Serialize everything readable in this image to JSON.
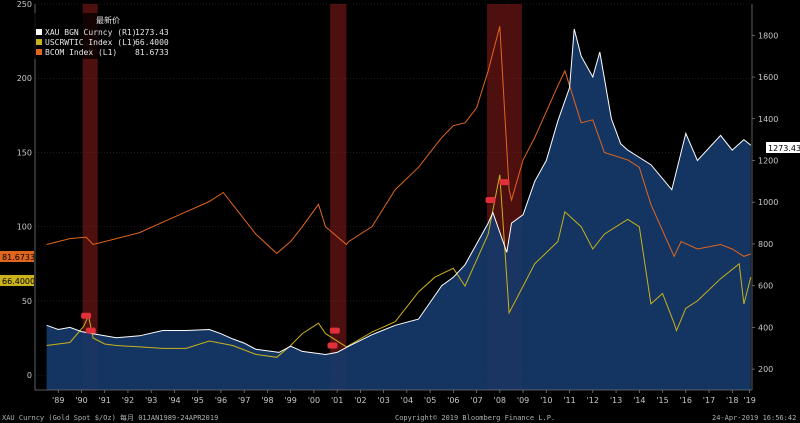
{
  "colors": {
    "background": "#000000",
    "gold": "#ffffff",
    "oil": "#c9b21b",
    "bcom": "#e0661e",
    "area": "#163a6b",
    "recession": "#8e1b1b",
    "marker": "#e0303a",
    "grid": "#3a3a3a"
  },
  "chart_data": {
    "type": "line",
    "title": "最新价",
    "xlabel": "",
    "ylabel_left": "",
    "ylabel_right": "",
    "x_range": [
      1988.5,
      2019.35
    ],
    "ylim_left": [
      -10,
      250
    ],
    "ylim_right": [
      100,
      1950
    ],
    "left_ticks": [
      0,
      50,
      100,
      150,
      200,
      250
    ],
    "right_ticks": [
      200,
      400,
      600,
      800,
      1000,
      1200,
      1400,
      1600,
      1800
    ],
    "x_ticks": [
      {
        "label": "'89",
        "x": 1989.5
      },
      {
        "label": "'90",
        "x": 1990.5
      },
      {
        "label": "'91",
        "x": 1991.5
      },
      {
        "label": "'92",
        "x": 1992.5
      },
      {
        "label": "'93",
        "x": 1993.5
      },
      {
        "label": "'94",
        "x": 1994.5
      },
      {
        "label": "'95",
        "x": 1995.5
      },
      {
        "label": "'96",
        "x": 1996.5
      },
      {
        "label": "'97",
        "x": 1997.5
      },
      {
        "label": "'98",
        "x": 1998.5
      },
      {
        "label": "'99",
        "x": 1999.5
      },
      {
        "label": "'00",
        "x": 2000.5
      },
      {
        "label": "'01",
        "x": 2001.5
      },
      {
        "label": "'02",
        "x": 2002.5
      },
      {
        "label": "'03",
        "x": 2003.5
      },
      {
        "label": "'04",
        "x": 2004.5
      },
      {
        "label": "'05",
        "x": 2005.5
      },
      {
        "label": "'06",
        "x": 2006.5
      },
      {
        "label": "'07",
        "x": 2007.5
      },
      {
        "label": "'08",
        "x": 2008.5
      },
      {
        "label": "'09",
        "x": 2009.5
      },
      {
        "label": "'10",
        "x": 2010.5
      },
      {
        "label": "'11",
        "x": 2011.5
      },
      {
        "label": "'12",
        "x": 2012.5
      },
      {
        "label": "'13",
        "x": 2013.5
      },
      {
        "label": "'14",
        "x": 2014.5
      },
      {
        "label": "'15",
        "x": 2015.5
      },
      {
        "label": "'16",
        "x": 2016.5
      },
      {
        "label": "'17",
        "x": 2017.5
      },
      {
        "label": "'18",
        "x": 2018.5
      },
      {
        "label": "'19",
        "x": 2019.25
      }
    ],
    "recessions": [
      [
        1990.55,
        1991.2
      ],
      [
        2001.2,
        2001.9
      ],
      [
        2007.95,
        2009.45
      ]
    ],
    "legend": {
      "title": "最新价",
      "entries": [
        {
          "name": "XAU BGN Curncy  (R1)",
          "value": "1273.43",
          "color": "#ffffff"
        },
        {
          "name": "USCRWTIC Index  (L1)",
          "value": "66.4000",
          "color": "#c9b21b"
        },
        {
          "name": "BCOM Index  (L1)",
          "value": "81.6733",
          "color": "#e0661e"
        }
      ]
    },
    "last_labels": {
      "gold": "1273.43",
      "bcom": "81.6733",
      "oil": "66.4000"
    },
    "series": [
      {
        "name": "XAU BGN Curncy",
        "axis": "right",
        "x": [
          1989.0,
          1989.5,
          1990.0,
          1990.5,
          1991.0,
          1991.5,
          1992.0,
          1993.0,
          1994.0,
          1995.0,
          1996.0,
          1996.5,
          1997.0,
          1997.5,
          1998.0,
          1999.0,
          1999.5,
          2000.0,
          2001.0,
          2001.5,
          2002.0,
          2003.0,
          2004.0,
          2005.0,
          2006.0,
          2006.5,
          2007.0,
          2008.0,
          2008.2,
          2008.8,
          2009.0,
          2009.5,
          2010.0,
          2010.5,
          2011.0,
          2011.5,
          2011.7,
          2012.0,
          2012.5,
          2012.8,
          2013.3,
          2013.7,
          2014.0,
          2015.0,
          2015.9,
          2016.5,
          2017.0,
          2018.0,
          2018.5,
          2019.0,
          2019.3
        ],
        "values": [
          410,
          390,
          400,
          380,
          370,
          360,
          350,
          360,
          385,
          385,
          390,
          370,
          345,
          325,
          295,
          280,
          310,
          285,
          270,
          280,
          310,
          365,
          410,
          440,
          600,
          640,
          700,
          900,
          950,
          760,
          900,
          940,
          1100,
          1200,
          1390,
          1550,
          1830,
          1700,
          1600,
          1720,
          1400,
          1280,
          1250,
          1180,
          1060,
          1330,
          1200,
          1320,
          1250,
          1300,
          1273
        ]
      },
      {
        "name": "USCRWTIC Index",
        "axis": "left",
        "x": [
          1989.0,
          1990.0,
          1990.6,
          1990.8,
          1991.0,
          1991.5,
          1992.0,
          1993.0,
          1994.0,
          1995.0,
          1996.0,
          1997.0,
          1998.0,
          1998.9,
          1999.5,
          2000.0,
          2000.7,
          2001.0,
          2001.9,
          2002.0,
          2003.0,
          2004.0,
          2005.0,
          2005.7,
          2006.5,
          2007.0,
          2008.0,
          2008.5,
          2008.9,
          2009.0,
          2009.5,
          2010.0,
          2011.0,
          2011.3,
          2012.0,
          2012.5,
          2013.0,
          2014.0,
          2014.5,
          2015.0,
          2015.5,
          2016.0,
          2016.1,
          2016.5,
          2017.0,
          2018.0,
          2018.8,
          2019.0,
          2019.3
        ],
        "values": [
          20,
          22,
          33,
          40,
          25,
          21,
          20,
          19,
          18,
          18,
          23,
          20,
          14,
          12,
          20,
          28,
          35,
          28,
          19,
          20,
          29,
          36,
          56,
          66,
          72,
          60,
          95,
          135,
          42,
          45,
          60,
          75,
          90,
          110,
          100,
          85,
          95,
          105,
          100,
          48,
          55,
          35,
          30,
          45,
          50,
          65,
          75,
          48,
          66
        ]
      },
      {
        "name": "BCOM Index",
        "axis": "left",
        "x": [
          1989.0,
          1990.0,
          1990.7,
          1991.0,
          1992.0,
          1993.0,
          1994.0,
          1995.0,
          1996.0,
          1996.6,
          1997.0,
          1998.0,
          1998.9,
          1999.5,
          2000.0,
          2000.7,
          2001.0,
          2001.9,
          2002.0,
          2003.0,
          2004.0,
          2005.0,
          2006.0,
          2006.5,
          2007.0,
          2007.5,
          2008.0,
          2008.5,
          2008.9,
          2009.0,
          2009.5,
          2010.0,
          2011.0,
          2011.3,
          2012.0,
          2012.5,
          2013.0,
          2014.0,
          2014.5,
          2015.0,
          2016.0,
          2016.3,
          2017.0,
          2018.0,
          2018.5,
          2019.0,
          2019.3
        ],
        "values": [
          88,
          92,
          93,
          88,
          92,
          96,
          103,
          110,
          117,
          123,
          115,
          95,
          82,
          90,
          100,
          115,
          100,
          88,
          90,
          100,
          125,
          140,
          160,
          168,
          170,
          180,
          205,
          235,
          125,
          118,
          145,
          160,
          195,
          205,
          170,
          172,
          150,
          145,
          140,
          115,
          80,
          90,
          85,
          88,
          85,
          80,
          81.67
        ]
      }
    ]
  },
  "footer": {
    "left": "XAU Curncy (Gold Spot  $/Oz)  每月 01JAN1989-24APR2019",
    "center": "Copyright© 2019 Bloomberg Finance L.P.",
    "right": "24-Apr-2019 16:56:42"
  }
}
